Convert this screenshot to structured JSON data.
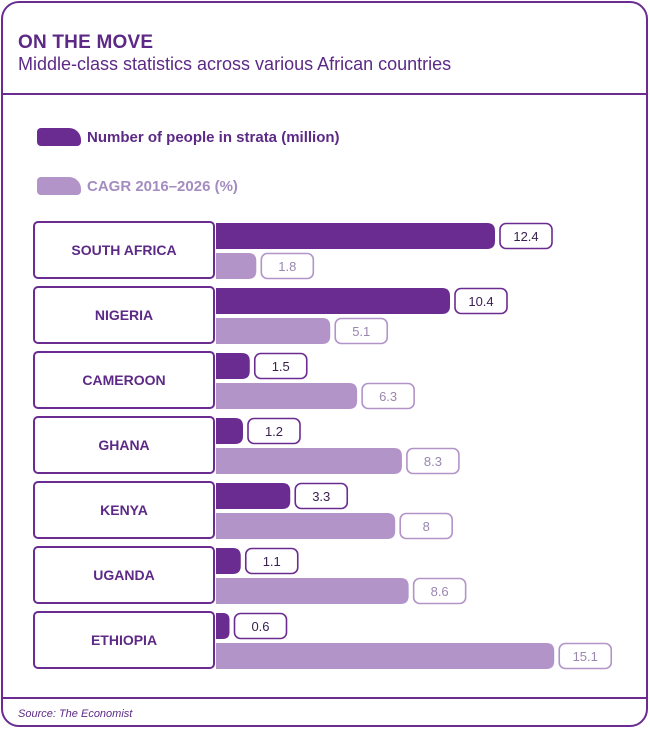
{
  "header": {
    "title": "ON THE MOVE",
    "subtitle": "Middle-class statistics across various African countries"
  },
  "footer": {
    "source": "Source: The Economist"
  },
  "colors": {
    "accent": "#6a2c91",
    "primary_series": "#6a2c91",
    "secondary_series": "#b294c8",
    "secondary_text": "#9a86b0",
    "dark_text": "#5c2a86"
  },
  "chart_data": {
    "type": "bar",
    "orientation": "horizontal",
    "title": "ON THE MOVE",
    "subtitle": "Middle-class statistics across various African countries",
    "categories": [
      "SOUTH AFRICA",
      "NIGERIA",
      "CAMEROON",
      "GHANA",
      "KENYA",
      "UGANDA",
      "ETHIOPIA"
    ],
    "series": [
      {
        "name": "Number of people in strata (million)",
        "values": [
          12.4,
          10.4,
          1.5,
          1.2,
          3.3,
          1.1,
          0.6
        ],
        "labels": [
          "12.4",
          "10.4",
          "1.5",
          "1.2",
          "3.3",
          "1.1",
          "0.6"
        ]
      },
      {
        "name": "CAGR 2016–2026 (%)",
        "values": [
          1.8,
          5.1,
          6.3,
          8.3,
          8,
          8.6,
          15.1
        ],
        "labels": [
          "1.8",
          "5.1",
          "6.3",
          "8.3",
          "8",
          "8.6",
          "15.1"
        ]
      }
    ],
    "xlabel": "",
    "ylabel": "",
    "legend": "top-left",
    "grid": false
  }
}
